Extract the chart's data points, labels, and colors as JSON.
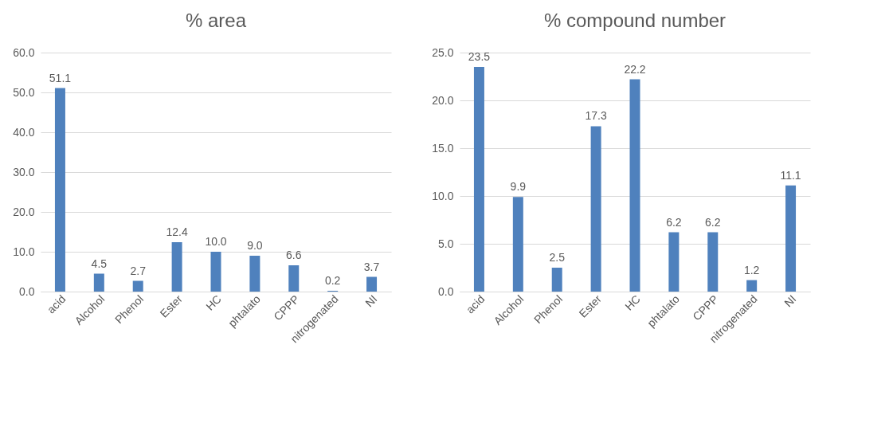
{
  "chart_data": [
    {
      "type": "bar",
      "title": "% area",
      "categories": [
        "acid",
        "Alcohol",
        "Phenol",
        "Ester",
        "HC",
        "phtalato",
        "CPPP",
        "nitrogenated",
        "NI"
      ],
      "values": [
        51.1,
        4.5,
        2.7,
        12.4,
        10.0,
        9.0,
        6.6,
        0.2,
        3.7
      ],
      "value_labels": [
        "51.1",
        "4.5",
        "2.7",
        "12.4",
        "10.0",
        "9.0",
        "6.6",
        "0.2",
        "3.7"
      ],
      "color": "#4f81bd",
      "ylim": [
        0,
        60
      ],
      "yticks": [
        {
          "value": 0,
          "label": "0.0"
        },
        {
          "value": 10,
          "label": "10.0"
        },
        {
          "value": 20,
          "label": "20.0"
        },
        {
          "value": 30,
          "label": "30.0"
        },
        {
          "value": 40,
          "label": "40.0"
        },
        {
          "value": 50,
          "label": "50.0"
        },
        {
          "value": 60,
          "label": "60.0"
        }
      ],
      "grid": "y"
    },
    {
      "type": "bar",
      "title": "% compound number",
      "categories": [
        "acid",
        "Alcohol",
        "Phenol",
        "Ester",
        "HC",
        "phtalato",
        "CPPP",
        "nitrogenated",
        "NI"
      ],
      "values": [
        23.5,
        9.9,
        2.5,
        17.3,
        22.2,
        6.2,
        6.2,
        1.2,
        11.1
      ],
      "value_labels": [
        "23.5",
        "9.9",
        "2.5",
        "17.3",
        "22.2",
        "6.2",
        "6.2",
        "1.2",
        "11.1"
      ],
      "color": "#4f81bd",
      "ylim": [
        0,
        25
      ],
      "yticks": [
        {
          "value": 0,
          "label": "0.0"
        },
        {
          "value": 5,
          "label": "5.0"
        },
        {
          "value": 10,
          "label": "10.0"
        },
        {
          "value": 15,
          "label": "15.0"
        },
        {
          "value": 20,
          "label": "20.0"
        },
        {
          "value": 25,
          "label": "25.0"
        }
      ],
      "grid": "y"
    }
  ]
}
